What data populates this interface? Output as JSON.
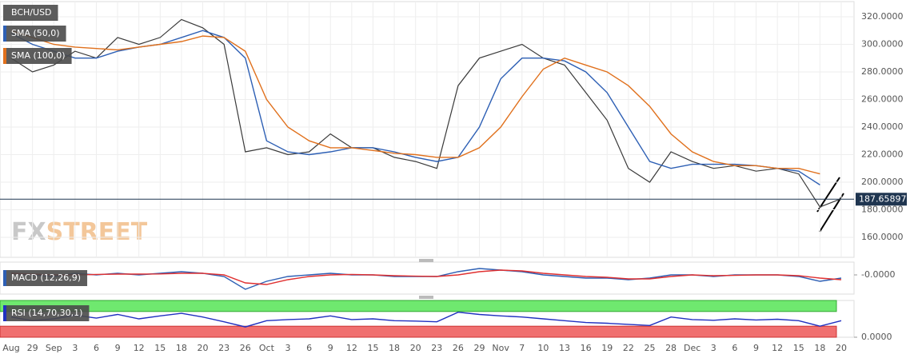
{
  "chart_data": [
    {
      "type": "line",
      "title": "BCH/USD",
      "watermark": [
        "FX",
        "STREET"
      ],
      "categories": [
        "Aug",
        "29",
        "Sep",
        "3",
        "6",
        "9",
        "12",
        "15",
        "18",
        "20",
        "23",
        "26",
        "Oct",
        "3",
        "6",
        "9",
        "12",
        "15",
        "18",
        "20",
        "23",
        "26",
        "29",
        "Nov",
        "7",
        "10",
        "13",
        "16",
        "19",
        "22",
        "25",
        "28",
        "Dec",
        "3",
        "6",
        "9",
        "12",
        "15",
        "18",
        "20"
      ],
      "series": [
        {
          "name": "BCH/USD",
          "color": "#3a3a3a",
          "values": [
            290,
            280,
            285,
            295,
            290,
            305,
            300,
            305,
            318,
            312,
            300,
            222,
            225,
            220,
            222,
            235,
            225,
            225,
            218,
            215,
            210,
            270,
            290,
            295,
            300,
            290,
            285,
            265,
            245,
            210,
            200,
            222,
            215,
            210,
            212,
            208,
            210,
            206,
            182,
            188
          ]
        },
        {
          "name": "SMA (50,0)",
          "color": "#2d5fb4",
          "values": [
            308,
            300,
            295,
            290,
            290,
            295,
            298,
            300,
            305,
            310,
            305,
            290,
            230,
            222,
            220,
            222,
            225,
            225,
            222,
            218,
            215,
            218,
            240,
            275,
            290,
            290,
            288,
            280,
            265,
            240,
            215,
            210,
            213,
            213,
            213,
            212,
            210,
            208,
            198,
            null
          ]
        },
        {
          "name": "SMA (100,0)",
          "color": "#e0701c",
          "values": [
            310,
            305,
            300,
            298,
            297,
            296,
            298,
            300,
            302,
            306,
            305,
            295,
            260,
            240,
            230,
            225,
            225,
            223,
            221,
            220,
            218,
            218,
            225,
            240,
            262,
            282,
            290,
            285,
            280,
            270,
            255,
            235,
            222,
            215,
            212,
            212,
            210,
            210,
            206,
            null
          ]
        }
      ],
      "last_price": 187.65897,
      "ylim": [
        145.5,
        331
      ],
      "yticks": [
        {
          "value": 160,
          "label": "160.0000"
        },
        {
          "value": 180,
          "label": "180.0000"
        },
        {
          "value": 200,
          "label": "200.0000"
        },
        {
          "value": 220,
          "label": "220.0000"
        },
        {
          "value": 240,
          "label": "240.0000"
        },
        {
          "value": 260,
          "label": "260.0000"
        },
        {
          "value": 280,
          "label": "280.0000"
        },
        {
          "value": 300,
          "label": "300.0000"
        },
        {
          "value": 320,
          "label": "320.0000"
        }
      ],
      "grid": true
    },
    {
      "type": "line",
      "title": "MACD (12,26,9)",
      "series": [
        {
          "color": "#2d5fb4",
          "values": [
            1,
            0,
            -1,
            1,
            0,
            1,
            0,
            1,
            2,
            1,
            -1,
            -9,
            -4,
            -1,
            0,
            1,
            0,
            0,
            -1,
            -1,
            -1,
            2,
            4,
            3,
            2,
            0,
            -1,
            -2,
            -2,
            -3,
            -2,
            0,
            0,
            -1,
            0,
            0,
            0,
            -1,
            -4,
            -2
          ]
        },
        {
          "color": "#e03030",
          "values": [
            1,
            0.5,
            0,
            0,
            0.3,
            0.5,
            0.5,
            0.6,
            1,
            1,
            0,
            -5,
            -6,
            -3,
            -1,
            0,
            0.3,
            0,
            -0.5,
            -0.8,
            -1,
            0,
            2,
            3,
            2.5,
            1,
            0,
            -1,
            -1.5,
            -2.5,
            -2.5,
            -1,
            0,
            -0.5,
            -0.3,
            0,
            0,
            -0.5,
            -2,
            -3
          ]
        }
      ],
      "ylim": [
        -12,
        8
      ],
      "yticks": [
        {
          "value": 0,
          "label": "-0.0000"
        }
      ]
    },
    {
      "type": "line",
      "title": "RSI (14,70,30,1)",
      "series": [
        {
          "color": "#2030c0",
          "values": [
            55,
            45,
            50,
            60,
            52,
            62,
            50,
            58,
            65,
            55,
            42,
            28,
            45,
            48,
            50,
            58,
            48,
            50,
            45,
            44,
            42,
            68,
            62,
            58,
            55,
            50,
            45,
            40,
            38,
            35,
            32,
            55,
            48,
            46,
            50,
            47,
            49,
            45,
            30,
            45
          ]
        }
      ],
      "overbought": 70,
      "oversold": 30,
      "ylim": [
        0,
        100
      ],
      "yticks": [
        {
          "value": 0,
          "label": "0.0000"
        }
      ]
    }
  ]
}
